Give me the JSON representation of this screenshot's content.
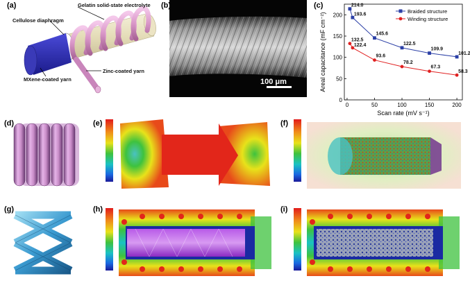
{
  "panels": {
    "a": "(a)",
    "b": "(b)",
    "c": "(c)",
    "d": "(d)",
    "e": "(e)",
    "f": "(f)",
    "g": "(g)",
    "h": "(h)",
    "i": "(i)"
  },
  "schematic": {
    "electrolyte": "Gelatin solid-state electrolyte",
    "diaphragm": "Cellulose diaphragm",
    "mxene": "MXene-coated yarn",
    "zinc": "Zinc-coated yarn"
  },
  "sem": {
    "scale_bar": "100 μm"
  },
  "chart_data": {
    "type": "line",
    "xlabel": "Scan rate (mV s⁻¹)",
    "ylabel": "Areal capacitance (mF cm⁻²)",
    "xlim": [
      -5,
      210
    ],
    "ylim": [
      0,
      225
    ],
    "xticks": [
      "0",
      "50",
      "100",
      "150",
      "200"
    ],
    "yticks": [
      "0",
      "50",
      "100",
      "150",
      "200"
    ],
    "legend_position": "top-right",
    "series": [
      {
        "name": "Braided structure",
        "color": "#2b3fa6",
        "marker": "square",
        "x": [
          5,
          10,
          50,
          100,
          150,
          200
        ],
        "values": [
          214.0,
          193.6,
          145.6,
          122.5,
          109.9,
          101.2
        ],
        "labels": [
          "214.0",
          "193.6",
          "145.6",
          "122.5",
          "109.9",
          "101.2"
        ]
      },
      {
        "name": "Winding structure",
        "color": "#e02020",
        "marker": "circle",
        "x": [
          5,
          10,
          50,
          100,
          150,
          200
        ],
        "values": [
          132.5,
          122.4,
          93.6,
          78.2,
          67.3,
          58.3
        ],
        "labels": [
          "132.5",
          "122.4",
          "93.6",
          "78.2",
          "67.3",
          "58.3"
        ]
      }
    ]
  }
}
